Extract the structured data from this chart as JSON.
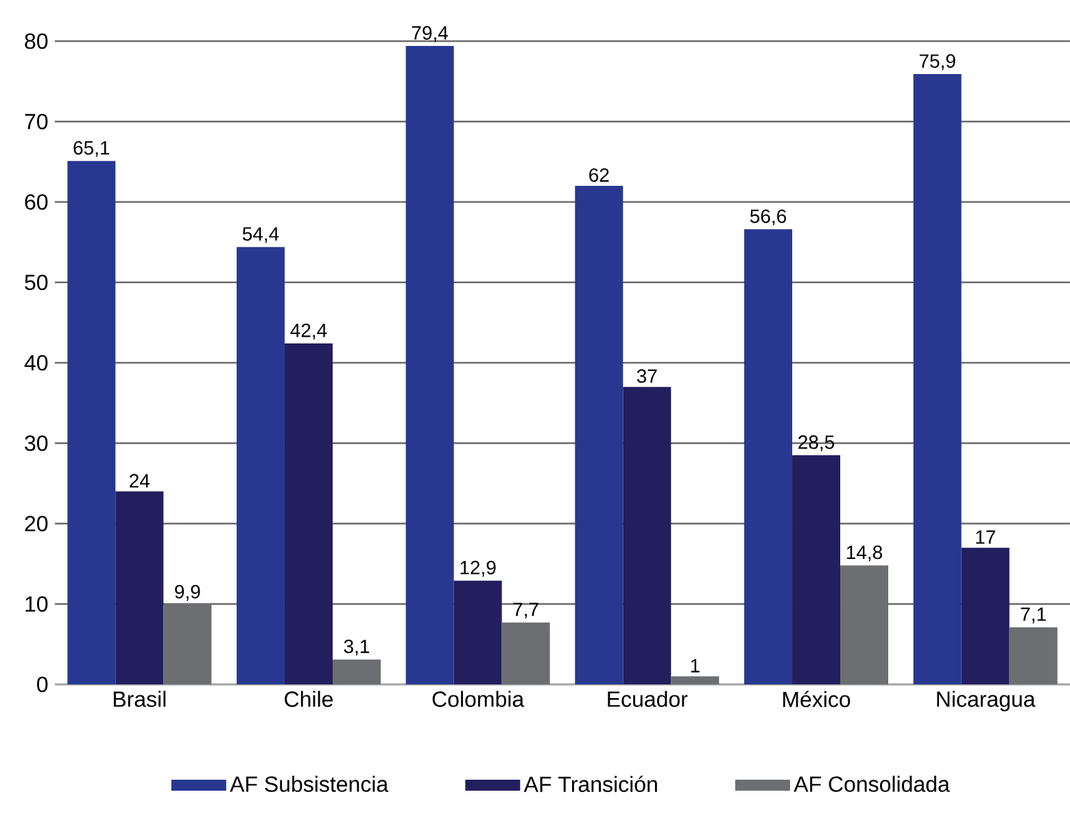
{
  "chart_data": {
    "type": "bar",
    "categories": [
      "Brasil",
      "Chile",
      "Colombia",
      "Ecuador",
      "México",
      "Nicaragua"
    ],
    "series": [
      {
        "name": "AF Subsistencia",
        "color": "#283891",
        "values": [
          65.1,
          54.4,
          79.4,
          62,
          56.6,
          75.9
        ],
        "value_labels": [
          "65,1",
          "54,4",
          "79,4",
          "62",
          "56,6",
          "75,9"
        ]
      },
      {
        "name": "AF Transición",
        "color": "#231f5e",
        "values": [
          24,
          42.4,
          12.9,
          37,
          28.5,
          17
        ],
        "value_labels": [
          "24",
          "42,4",
          "12,9",
          "37",
          "28,5",
          "17"
        ]
      },
      {
        "name": "AF Consolidada",
        "color": "#6d6e71",
        "values": [
          9.9,
          3.1,
          7.7,
          1,
          14.8,
          7.1
        ],
        "value_labels": [
          "9,9",
          "3,1",
          "7,7",
          "1",
          "14,8",
          "7,1"
        ]
      }
    ],
    "ylim": [
      0,
      80
    ],
    "yticks": [
      0,
      10,
      20,
      30,
      40,
      50,
      60,
      70,
      80
    ],
    "grid": "y",
    "legend": "bottom"
  }
}
